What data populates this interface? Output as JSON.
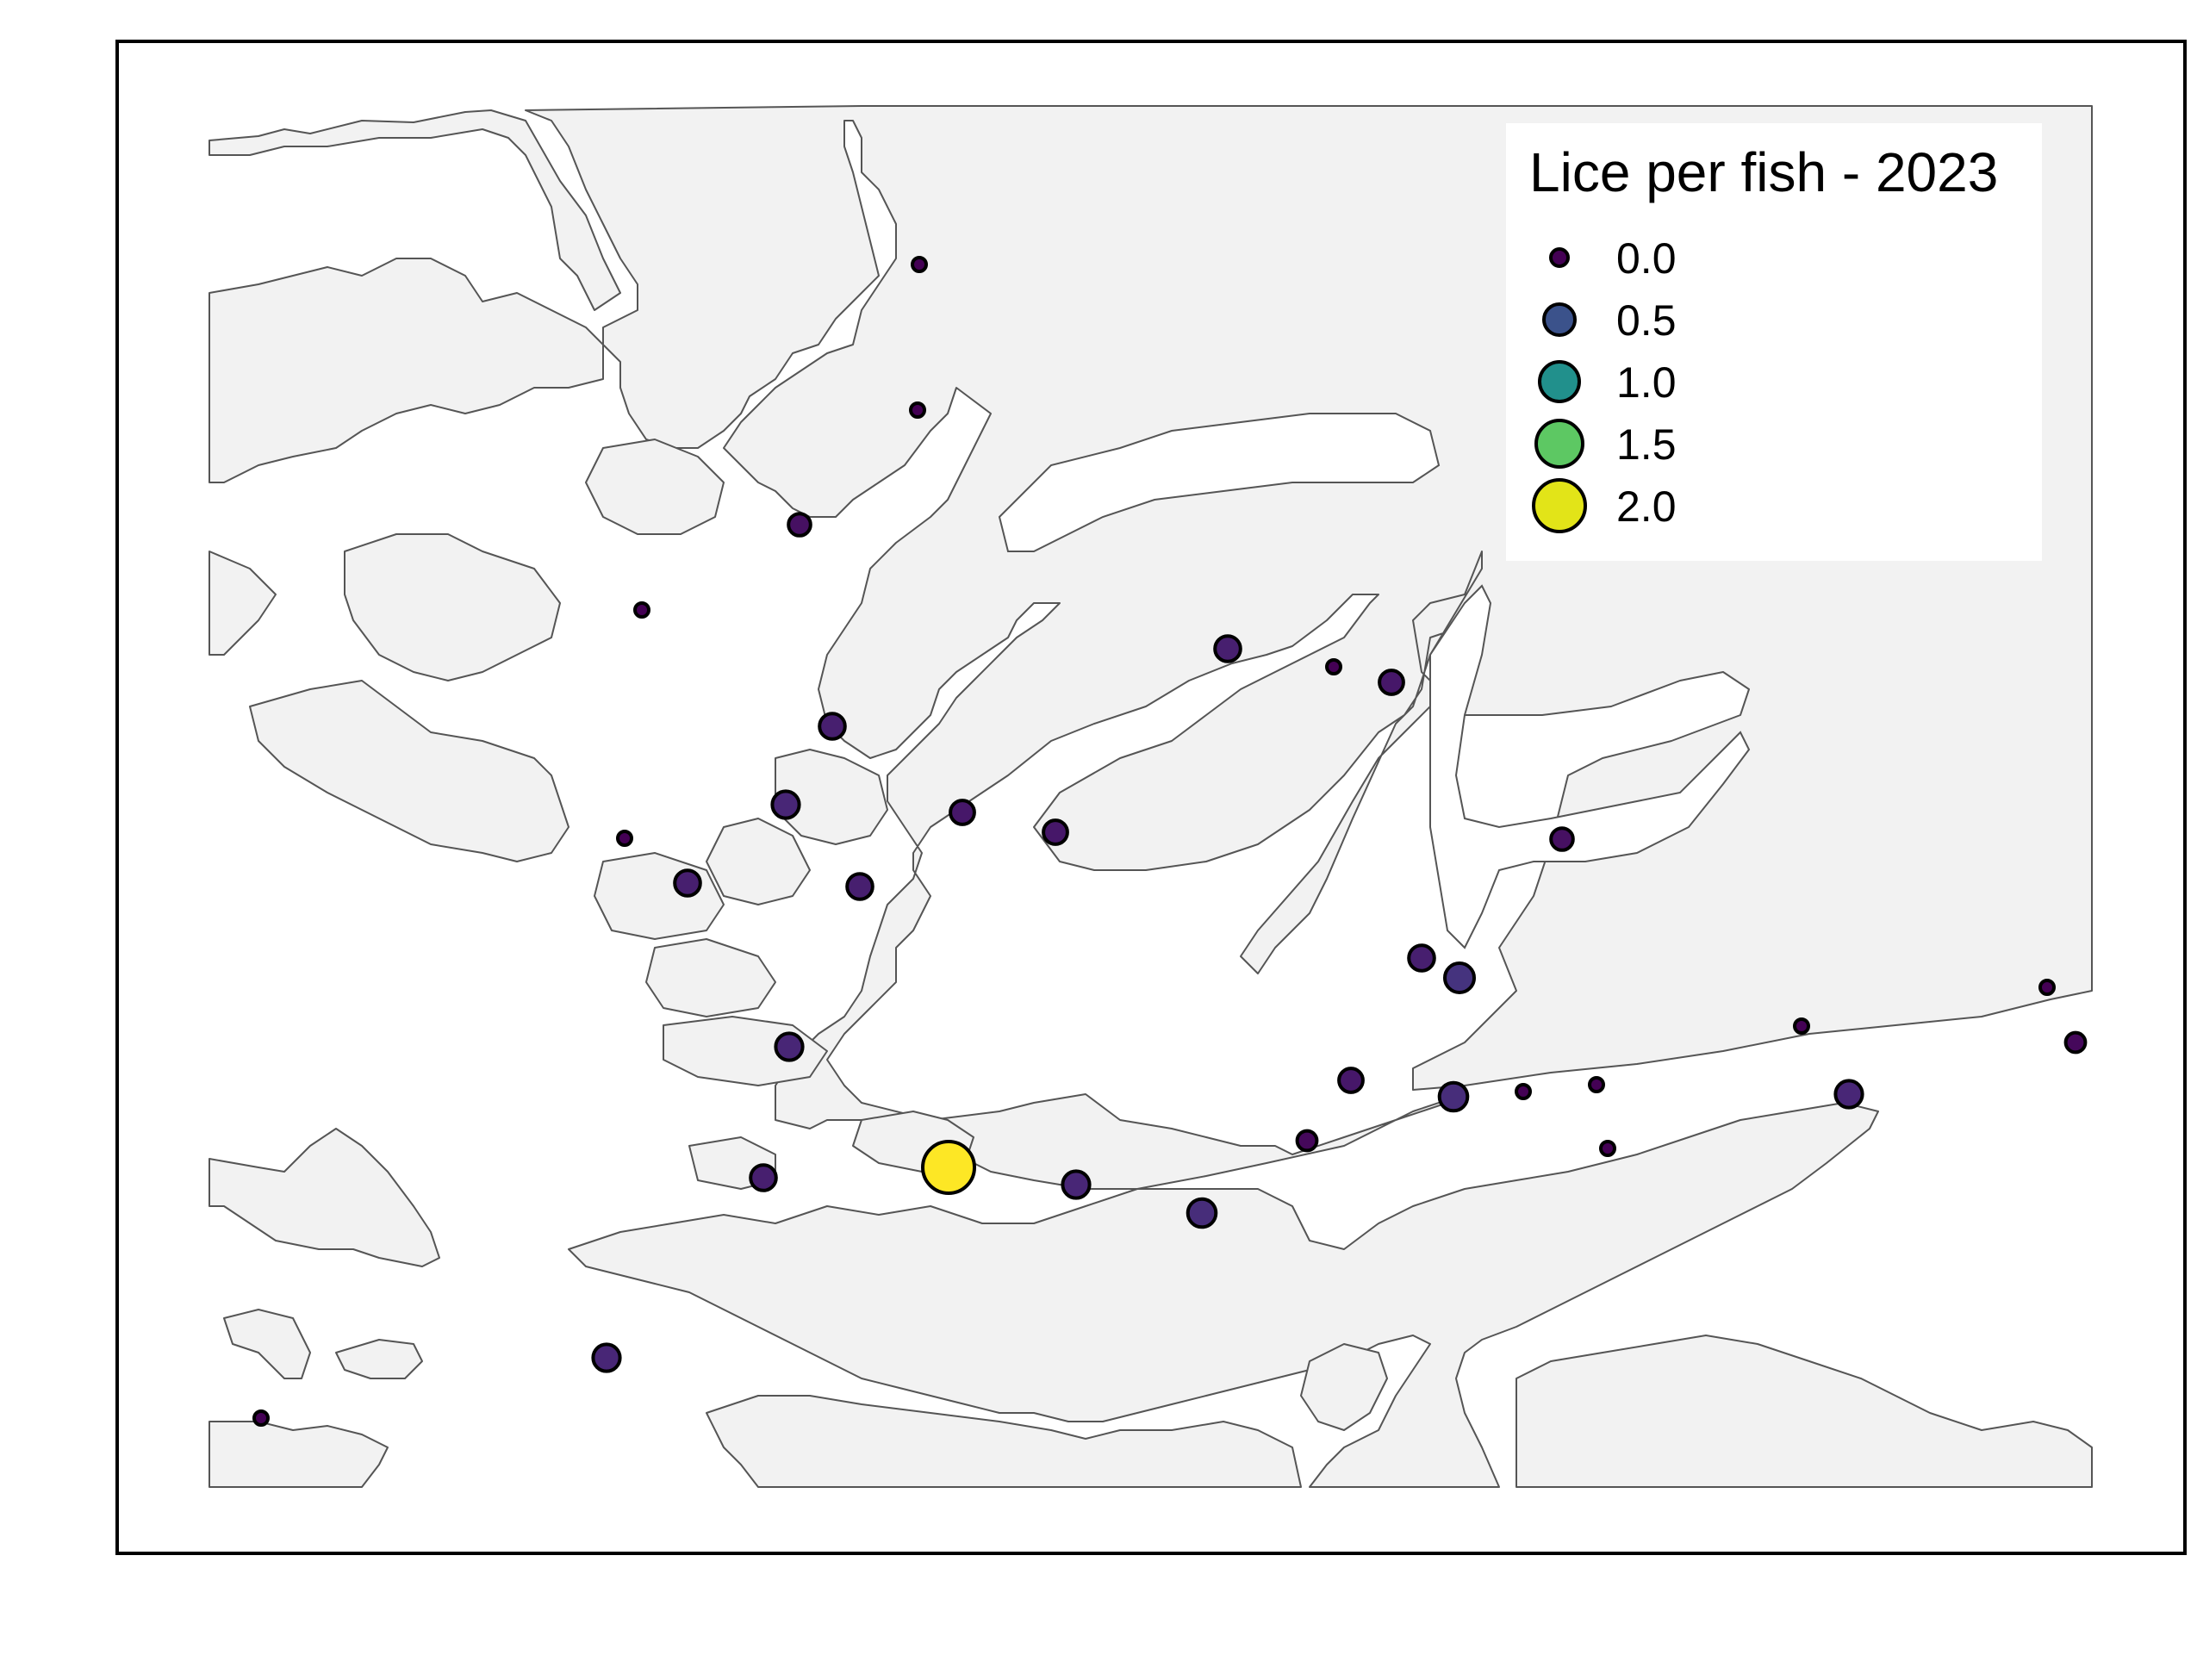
{
  "map": {
    "title": "",
    "panel_background": "#ffffff",
    "land_color": "#f2f2f2",
    "water_color": "#ffffff",
    "coast_color": "#555555"
  },
  "legend": {
    "title": "Lice per fish - 2023",
    "placement": "top-right",
    "items": [
      {
        "label": "0.0",
        "value": 0.0,
        "color": "#440154"
      },
      {
        "label": "0.5",
        "value": 0.5,
        "color": "#3b528b"
      },
      {
        "label": "1.0",
        "value": 1.0,
        "color": "#21908c"
      },
      {
        "label": "1.5",
        "value": 1.5,
        "color": "#5dc863"
      },
      {
        "label": "2.0",
        "value": 2.0,
        "color": "#e2e418"
      }
    ]
  },
  "sites": [
    {
      "id": 1,
      "lice": 0.0
    },
    {
      "id": 2,
      "lice": 0.0
    },
    {
      "id": 3,
      "lice": 0.1
    },
    {
      "id": 4,
      "lice": 0.0
    },
    {
      "id": 5,
      "lice": 0.2
    },
    {
      "id": 6,
      "lice": 0.0
    },
    {
      "id": 7,
      "lice": 0.15
    },
    {
      "id": 8,
      "lice": 0.2
    },
    {
      "id": 9,
      "lice": 0.25
    },
    {
      "id": 10,
      "lice": 0.0
    },
    {
      "id": 11,
      "lice": 0.15
    },
    {
      "id": 12,
      "lice": 0.15
    },
    {
      "id": 13,
      "lice": 0.2
    },
    {
      "id": 14,
      "lice": 0.2
    },
    {
      "id": 15,
      "lice": 0.1
    },
    {
      "id": 16,
      "lice": 0.2
    },
    {
      "id": 17,
      "lice": 0.35
    },
    {
      "id": 18,
      "lice": 0.25
    },
    {
      "id": 19,
      "lice": 0.15
    },
    {
      "id": 20,
      "lice": 0.3
    },
    {
      "id": 21,
      "lice": 0.0
    },
    {
      "id": 22,
      "lice": 0.0
    },
    {
      "id": 23,
      "lice": 0.0
    },
    {
      "id": 24,
      "lice": 0.25
    },
    {
      "id": 25,
      "lice": 0.0
    },
    {
      "id": 26,
      "lice": 0.2
    },
    {
      "id": 27,
      "lice": 2.1
    },
    {
      "id": 28,
      "lice": 0.25
    },
    {
      "id": 29,
      "lice": 0.3
    },
    {
      "id": 30,
      "lice": 0.05
    },
    {
      "id": 31,
      "lice": 0.25
    },
    {
      "id": 32,
      "lice": 0.0
    },
    {
      "id": 33,
      "lice": 0.05
    },
    {
      "id": 34,
      "lice": 0.0
    }
  ]
}
